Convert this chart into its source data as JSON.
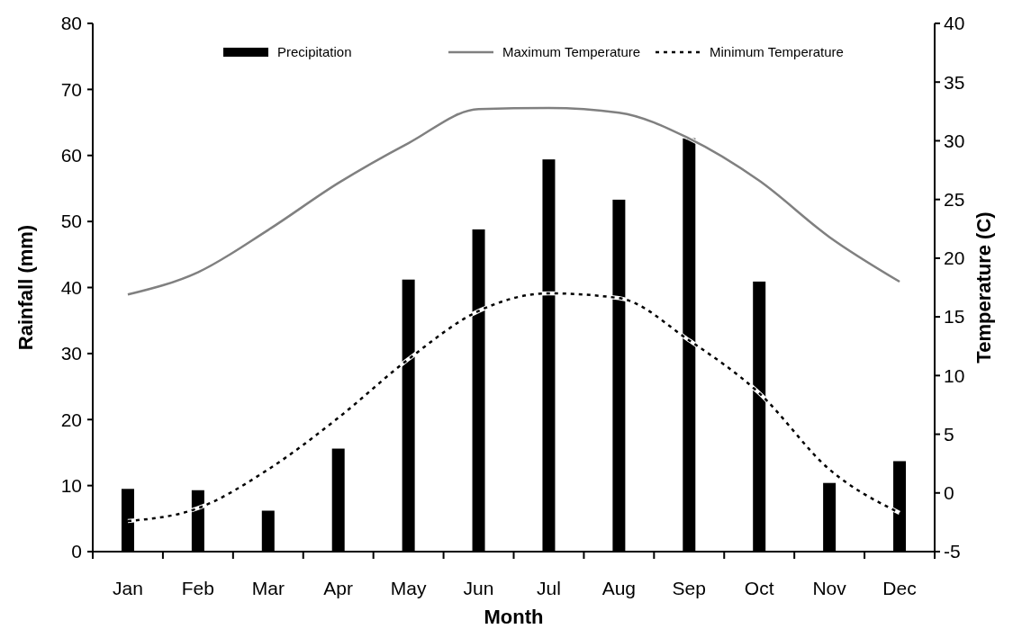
{
  "chart_data": {
    "type": "bar",
    "xlabel": "Month",
    "ylabel": "Rainfall (mm)",
    "y2label": "Temperature (C)",
    "categories": [
      "Jan",
      "Feb",
      "Mar",
      "Apr",
      "May",
      "Jun",
      "Jul",
      "Aug",
      "Sep",
      "Oct",
      "Nov",
      "Dec"
    ],
    "series": [
      {
        "name": "Precipitation",
        "color": "#000000",
        "values": [
          9.5,
          9.3,
          6.2,
          15.6,
          41.2,
          48.8,
          59.4,
          53.3,
          62.6,
          40.9,
          10.4,
          13.7
        ]
      },
      {
        "name": "Maximum Temperature",
        "type": "line",
        "axis": "y2",
        "color": "#808080",
        "line_style": "solid",
        "values": [
          16.9,
          18.8,
          22.4,
          26.4,
          29.8,
          32.7,
          32.8,
          32.4,
          30.2,
          26.6,
          21.8,
          18.0
        ]
      },
      {
        "name": "Minimum Temperature",
        "type": "line",
        "axis": "y2",
        "color": "#000000",
        "line_style": "dotted",
        "values": [
          -2.4,
          -1.3,
          2.0,
          6.4,
          11.4,
          15.5,
          17.0,
          16.6,
          13.0,
          8.5,
          2.0,
          -1.7
        ]
      }
    ],
    "ylim": [
      0,
      80
    ],
    "yticks": [
      0,
      10,
      20,
      30,
      40,
      50,
      60,
      70,
      80
    ],
    "y2lim": [
      -5,
      40
    ],
    "y2ticks": [
      -5,
      0,
      5,
      10,
      15,
      20,
      25,
      30,
      35,
      40
    ],
    "legend": "top",
    "grid": false
  }
}
